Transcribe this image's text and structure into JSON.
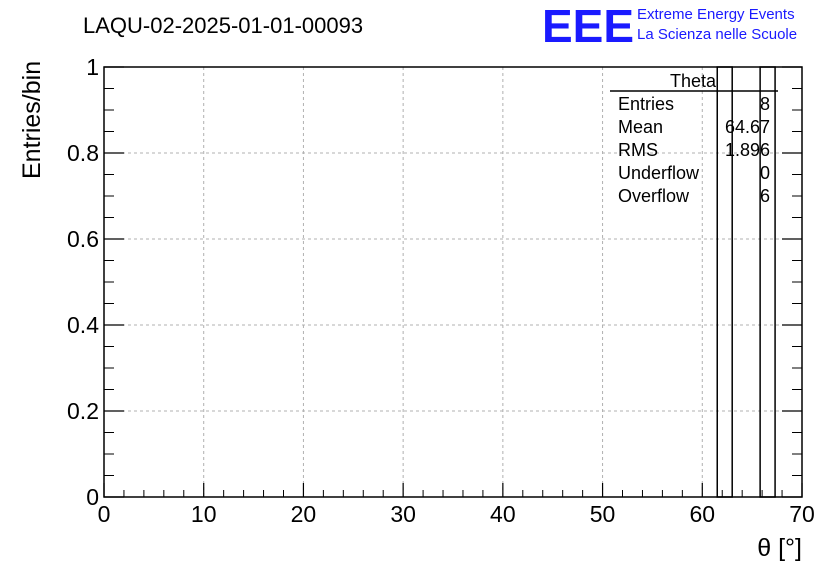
{
  "header": {
    "run_title": "LAQU-02-2025-01-01-00093"
  },
  "logo": {
    "mark": "EEE",
    "line1": "Extreme Energy Events",
    "line2": "La Scienza nelle Scuole",
    "color": "#1a1aff"
  },
  "stats_box": {
    "name": "Theta",
    "rows": [
      {
        "label": "Entries",
        "value": "8"
      },
      {
        "label": "Mean",
        "value": "64.67"
      },
      {
        "label": "RMS",
        "value": "1.896"
      },
      {
        "label": "Underflow",
        "value": "0"
      },
      {
        "label": "Overflow",
        "value": "6"
      }
    ]
  },
  "chart_data": {
    "type": "bar",
    "title": "LAQU-02-2025-01-01-00093",
    "xlabel": "θ [°]",
    "ylabel": "Entries/bin",
    "xlim": [
      0,
      70
    ],
    "ylim": [
      0,
      1
    ],
    "grid": true,
    "x_ticks": [
      "0",
      "10",
      "20",
      "30",
      "40",
      "50",
      "60",
      "70"
    ],
    "y_ticks": [
      "0",
      "0.2",
      "0.4",
      "0.6",
      "0.8",
      "1"
    ],
    "bins": [
      {
        "x_low": 61.5,
        "x_high": 63,
        "value": 1
      },
      {
        "x_low": 65.8,
        "x_high": 67.3,
        "value": 1
      }
    ]
  }
}
